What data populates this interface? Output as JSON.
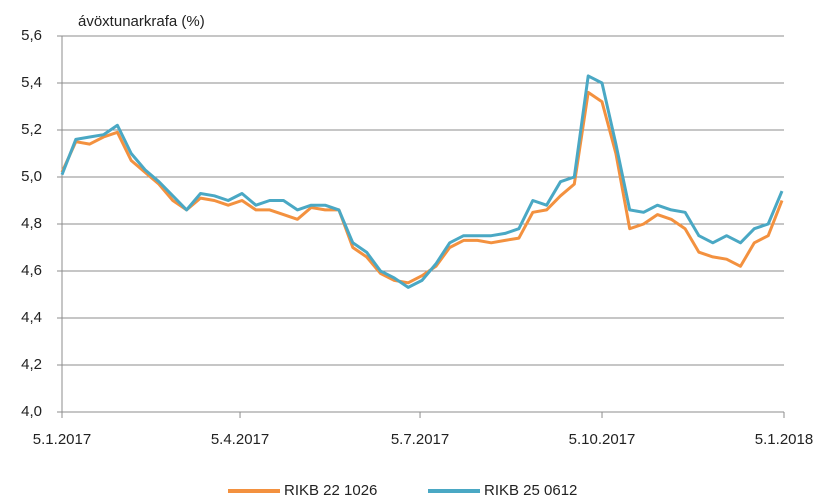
{
  "chart_data": {
    "type": "line",
    "ylabel": "ávöxtunarkrafa (%)",
    "x": [
      "5.1.2017",
      "12.1.2017",
      "19.1.2017",
      "26.1.2017",
      "2.2.2017",
      "9.2.2017",
      "16.2.2017",
      "23.2.2017",
      "2.3.2017",
      "9.3.2017",
      "16.3.2017",
      "23.3.2017",
      "30.3.2017",
      "6.4.2017",
      "13.4.2017",
      "20.4.2017",
      "27.4.2017",
      "4.5.2017",
      "11.5.2017",
      "18.5.2017",
      "25.5.2017",
      "1.6.2017",
      "8.6.2017",
      "15.6.2017",
      "22.6.2017",
      "29.6.2017",
      "6.7.2017",
      "13.7.2017",
      "20.7.2017",
      "27.7.2017",
      "3.8.2017",
      "10.8.2017",
      "17.8.2017",
      "24.8.2017",
      "31.8.2017",
      "7.9.2017",
      "14.9.2017",
      "21.9.2017",
      "28.9.2017",
      "5.10.2017",
      "12.10.2017",
      "19.10.2017",
      "26.10.2017",
      "2.11.2017",
      "9.11.2017",
      "16.11.2017",
      "23.11.2017",
      "30.11.2017",
      "7.12.2017",
      "14.12.2017",
      "21.12.2017",
      "28.12.2017",
      "4.1.2018"
    ],
    "series": [
      {
        "name": "RIKB 22 1026",
        "color": "#f3913f",
        "values": [
          5.02,
          5.15,
          5.14,
          5.17,
          5.19,
          5.07,
          5.02,
          4.97,
          4.9,
          4.86,
          4.91,
          4.9,
          4.88,
          4.9,
          4.86,
          4.86,
          4.84,
          4.82,
          4.87,
          4.86,
          4.86,
          4.7,
          4.66,
          4.59,
          4.56,
          4.55,
          4.58,
          4.62,
          4.7,
          4.73,
          4.73,
          4.72,
          4.73,
          4.74,
          4.85,
          4.86,
          4.92,
          4.97,
          5.36,
          5.32,
          5.1,
          4.78,
          4.8,
          4.84,
          4.82,
          4.78,
          4.68,
          4.66,
          4.65,
          4.62,
          4.72,
          4.75,
          4.9
        ]
      },
      {
        "name": "RIKB 25 0612",
        "color": "#4aa8c4",
        "values": [
          5.01,
          5.16,
          5.17,
          5.18,
          5.22,
          5.1,
          5.03,
          4.98,
          4.92,
          4.86,
          4.93,
          4.92,
          4.9,
          4.93,
          4.88,
          4.9,
          4.9,
          4.86,
          4.88,
          4.88,
          4.86,
          4.72,
          4.68,
          4.6,
          4.57,
          4.53,
          4.56,
          4.63,
          4.72,
          4.75,
          4.75,
          4.75,
          4.76,
          4.78,
          4.9,
          4.88,
          4.98,
          5.0,
          5.43,
          5.4,
          5.14,
          4.86,
          4.85,
          4.88,
          4.86,
          4.85,
          4.75,
          4.72,
          4.75,
          4.72,
          4.78,
          4.8,
          4.94
        ]
      }
    ],
    "xlim": [
      "5.1.2017",
      "5.1.2018"
    ],
    "xticks": [
      "5.1.2017",
      "5.4.2017",
      "5.7.2017",
      "5.10.2017",
      "5.1.2018"
    ],
    "ylim": [
      4.0,
      5.6
    ],
    "yticks": [
      {
        "value": 4.0,
        "label": "4,0"
      },
      {
        "value": 4.2,
        "label": "4,2"
      },
      {
        "value": 4.4,
        "label": "4,4"
      },
      {
        "value": 4.6,
        "label": "4,6"
      },
      {
        "value": 4.8,
        "label": "4,8"
      },
      {
        "value": 5.0,
        "label": "5,0"
      },
      {
        "value": 5.2,
        "label": "5,2"
      },
      {
        "value": 5.4,
        "label": "5,4"
      },
      {
        "value": 5.6,
        "label": "5,6"
      }
    ],
    "grid": true,
    "legend": "bottom"
  }
}
